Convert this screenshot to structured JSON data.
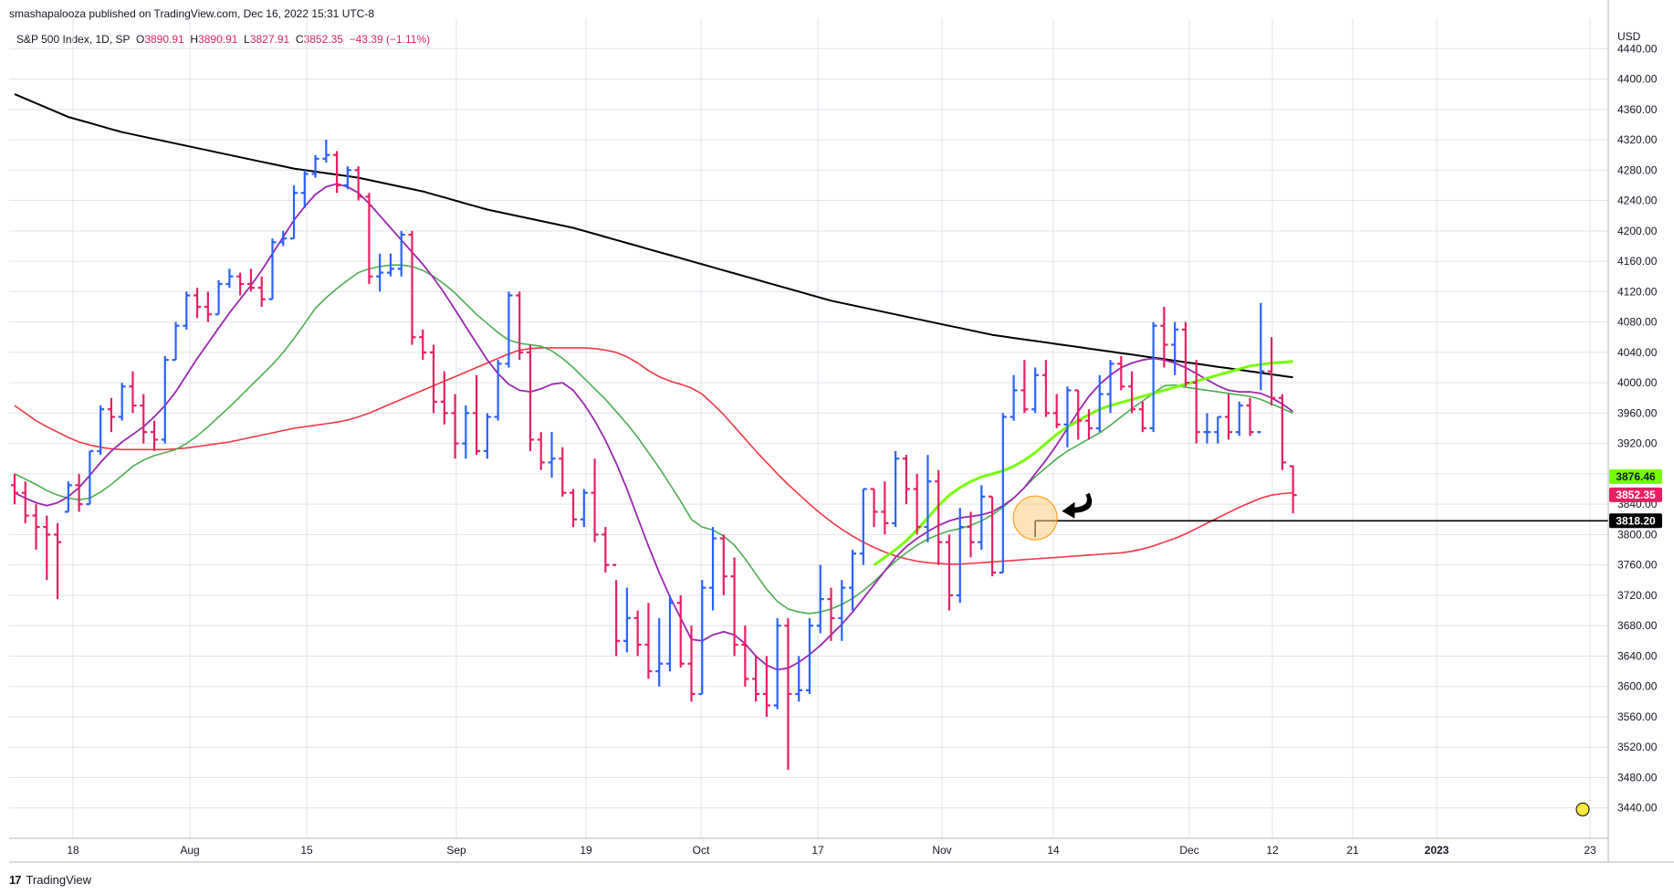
{
  "header": {
    "credit": "smashapalooza published on TradingView.com, Dec 16, 2022 15:31 UTC-8"
  },
  "legend": {
    "symbol": "S&P 500 Index, 1D, SP",
    "open_label": "O",
    "open": "3890.91",
    "high_label": "H",
    "high": "3890.91",
    "low_label": "L",
    "low": "3827.91",
    "close_label": "C",
    "close": "3852.35",
    "change": "−43.39 (−1.11%)"
  },
  "footer": {
    "brand": "TradingView",
    "brand_mark": "17"
  },
  "colors": {
    "up": "#2962ff",
    "down": "#e91e63",
    "ma200": "#000000",
    "ma50": "#f23645",
    "ma20": "#4caf50",
    "ma10": "#9c27b0",
    "highlight": "#76ff03",
    "grid": "#e0e3eb",
    "circle_fill": "#ffcc80",
    "marker": "#ffeb3b"
  },
  "chart_data": {
    "type": "ohlc",
    "currency": "USD",
    "y_ticks": [
      3440,
      3480,
      3520,
      3560,
      3600,
      3640,
      3680,
      3720,
      3760,
      3800,
      3840,
      3880,
      3920,
      3960,
      4000,
      4040,
      4080,
      4120,
      4160,
      4200,
      4240,
      4280,
      4320,
      4360,
      4400,
      4440
    ],
    "ylim": [
      3400,
      4480
    ],
    "x_ticks": [
      "18",
      "Aug",
      "15",
      "Sep",
      "19",
      "Oct",
      "17",
      "Nov",
      "14",
      "Dec",
      "12",
      "21",
      "2023",
      "23"
    ],
    "grid": true,
    "bars": [
      [
        3865,
        3880,
        3840,
        3855
      ],
      [
        3855,
        3870,
        3815,
        3825
      ],
      [
        3825,
        3840,
        3780,
        3810
      ],
      [
        3810,
        3825,
        3740,
        3800
      ],
      [
        3800,
        3815,
        3715,
        3790
      ],
      [
        3830,
        3870,
        3830,
        3865
      ],
      [
        3865,
        3880,
        3830,
        3840
      ],
      [
        3840,
        3910,
        3840,
        3910
      ],
      [
        3910,
        3970,
        3905,
        3965
      ],
      [
        3965,
        3980,
        3935,
        3955
      ],
      [
        3955,
        4000,
        3950,
        3995
      ],
      [
        3995,
        4015,
        3960,
        3970
      ],
      [
        3970,
        3985,
        3920,
        3935
      ],
      [
        3935,
        3950,
        3910,
        3925
      ],
      [
        3925,
        4035,
        3920,
        4030
      ],
      [
        4030,
        4080,
        4030,
        4075
      ],
      [
        4075,
        4120,
        4070,
        4115
      ],
      [
        4115,
        4125,
        4085,
        4100
      ],
      [
        4100,
        4120,
        4080,
        4090
      ],
      [
        4090,
        4135,
        4090,
        4130
      ],
      [
        4130,
        4150,
        4125,
        4140
      ],
      [
        4140,
        4145,
        4115,
        4130
      ],
      [
        4130,
        4150,
        4120,
        4125
      ],
      [
        4125,
        4140,
        4100,
        4110
      ],
      [
        4110,
        4190,
        4110,
        4185
      ],
      [
        4185,
        4200,
        4180,
        4190
      ],
      [
        4190,
        4260,
        4190,
        4250
      ],
      [
        4250,
        4280,
        4230,
        4275
      ],
      [
        4275,
        4300,
        4270,
        4295
      ],
      [
        4295,
        4320,
        4290,
        4300
      ],
      [
        4300,
        4305,
        4250,
        4260
      ],
      [
        4260,
        4285,
        4255,
        4280
      ],
      [
        4280,
        4285,
        4240,
        4245
      ],
      [
        4245,
        4250,
        4130,
        4140
      ],
      [
        4140,
        4170,
        4120,
        4145
      ],
      [
        4145,
        4170,
        4140,
        4150
      ],
      [
        4150,
        4200,
        4140,
        4195
      ],
      [
        4195,
        4200,
        4050,
        4060
      ],
      [
        4060,
        4070,
        4030,
        4040
      ],
      [
        4040,
        4050,
        3960,
        3975
      ],
      [
        3975,
        4015,
        3945,
        3960
      ],
      [
        3960,
        3985,
        3900,
        3920
      ],
      [
        3920,
        3970,
        3900,
        3960
      ],
      [
        3960,
        4010,
        3905,
        3910
      ],
      [
        3910,
        3960,
        3900,
        3955
      ],
      [
        3955,
        4030,
        3950,
        4025
      ],
      [
        4025,
        4120,
        4020,
        4115
      ],
      [
        4115,
        4120,
        4030,
        4040
      ],
      [
        4040,
        4050,
        3910,
        3925
      ],
      [
        3925,
        3935,
        3885,
        3895
      ],
      [
        3895,
        3935,
        3875,
        3900
      ],
      [
        3900,
        3915,
        3850,
        3855
      ],
      [
        3855,
        3860,
        3810,
        3820
      ],
      [
        3820,
        3860,
        3810,
        3855
      ],
      [
        3855,
        3900,
        3790,
        3800
      ],
      [
        3800,
        3810,
        3750,
        3760
      ],
      [
        3760,
        3740,
        3640,
        3660
      ],
      [
        3660,
        3730,
        3645,
        3690
      ],
      [
        3690,
        3700,
        3640,
        3655
      ],
      [
        3655,
        3710,
        3610,
        3620
      ],
      [
        3620,
        3690,
        3600,
        3630
      ],
      [
        3630,
        3720,
        3620,
        3710
      ],
      [
        3710,
        3720,
        3625,
        3630
      ],
      [
        3630,
        3680,
        3580,
        3590
      ],
      [
        3590,
        3740,
        3590,
        3730
      ],
      [
        3730,
        3810,
        3700,
        3795
      ],
      [
        3795,
        3800,
        3720,
        3745
      ],
      [
        3745,
        3770,
        3640,
        3655
      ],
      [
        3655,
        3680,
        3600,
        3610
      ],
      [
        3610,
        3640,
        3580,
        3590
      ],
      [
        3590,
        3640,
        3560,
        3575
      ],
      [
        3575,
        3690,
        3570,
        3680
      ],
      [
        3680,
        3690,
        3490,
        3590
      ],
      [
        3590,
        3640,
        3580,
        3595
      ],
      [
        3595,
        3690,
        3590,
        3680
      ],
      [
        3680,
        3760,
        3670,
        3715
      ],
      [
        3715,
        3730,
        3660,
        3690
      ],
      [
        3690,
        3740,
        3660,
        3730
      ],
      [
        3730,
        3780,
        3700,
        3775
      ],
      [
        3775,
        3860,
        3760,
        3860
      ],
      [
        3860,
        3860,
        3810,
        3830
      ],
      [
        3830,
        3870,
        3800,
        3815
      ],
      [
        3815,
        3910,
        3810,
        3900
      ],
      [
        3900,
        3905,
        3840,
        3860
      ],
      [
        3860,
        3880,
        3800,
        3810
      ],
      [
        3810,
        3905,
        3790,
        3870
      ],
      [
        3870,
        3885,
        3760,
        3790
      ],
      [
        3790,
        3800,
        3700,
        3720
      ],
      [
        3720,
        3835,
        3710,
        3810
      ],
      [
        3810,
        3830,
        3770,
        3790
      ],
      [
        3790,
        3865,
        3780,
        3850
      ],
      [
        3850,
        3850,
        3745,
        3750
      ],
      [
        3750,
        3960,
        3750,
        3955
      ],
      [
        3955,
        4010,
        3950,
        3990
      ],
      [
        3990,
        4030,
        3960,
        3965
      ],
      [
        3965,
        4020,
        3960,
        4010
      ],
      [
        4010,
        4030,
        3955,
        3960
      ],
      [
        3960,
        3985,
        3940,
        3945
      ],
      [
        3945,
        3995,
        3915,
        3990
      ],
      [
        3990,
        3990,
        3925,
        3950
      ],
      [
        3950,
        3965,
        3925,
        3940
      ],
      [
        3940,
        4010,
        3935,
        3985
      ],
      [
        3985,
        4030,
        3960,
        4025
      ],
      [
        4025,
        4035,
        3990,
        3995
      ],
      [
        3995,
        4015,
        3960,
        3965
      ],
      [
        3965,
        3975,
        3935,
        3940
      ],
      [
        3940,
        4080,
        3935,
        4075
      ],
      [
        4075,
        4100,
        4020,
        4050
      ],
      [
        4050,
        4080,
        4010,
        4070
      ],
      [
        4070,
        4080,
        3995,
        4000
      ],
      [
        4000,
        4030,
        3920,
        3935
      ],
      [
        3935,
        3960,
        3920,
        3935
      ],
      [
        3935,
        3955,
        3920,
        3955
      ],
      [
        3955,
        3985,
        3925,
        3935
      ],
      [
        3935,
        3975,
        3930,
        3970
      ],
      [
        3970,
        3980,
        3930,
        3935
      ],
      [
        3935,
        4105,
        3990,
        4015
      ],
      [
        4015,
        4060,
        3970,
        3980
      ],
      [
        3980,
        3985,
        3885,
        3895
      ],
      [
        3890,
        3891,
        3828,
        3852
      ]
    ],
    "ma200": [
      4380,
      4374,
      4368,
      4362,
      4356,
      4350,
      4346,
      4342,
      4338,
      4334,
      4330,
      4327,
      4324,
      4321,
      4318,
      4315,
      4312,
      4309,
      4306,
      4303,
      4300,
      4297,
      4294,
      4291,
      4288,
      4285,
      4282,
      4280,
      4278,
      4276,
      4274,
      4272,
      4270,
      4267,
      4264,
      4261,
      4258,
      4255,
      4252,
      4248,
      4244,
      4240,
      4236,
      4232,
      4228,
      4225,
      4222,
      4219,
      4216,
      4213,
      4210,
      4207,
      4204,
      4200,
      4196,
      4192,
      4188,
      4184,
      4180,
      4176,
      4172,
      4168,
      4164,
      4160,
      4156,
      4152,
      4148,
      4144,
      4140,
      4136,
      4132,
      4128,
      4124,
      4120,
      4116,
      4112,
      4108,
      4105,
      4102,
      4099,
      4096,
      4093,
      4090,
      4087,
      4084,
      4081,
      4078,
      4075,
      4072,
      4069,
      4066,
      4063,
      4061,
      4059,
      4057,
      4055,
      4053,
      4051,
      4049,
      4047,
      4045,
      4043,
      4041,
      4039,
      4037,
      4035,
      4033,
      4031,
      4029,
      4027,
      4025,
      4023,
      4021,
      4019,
      4017,
      4015,
      4013,
      4011,
      4009,
      4007
    ],
    "ma50": [
      3970,
      3960,
      3950,
      3942,
      3935,
      3928,
      3922,
      3918,
      3915,
      3913,
      3912,
      3912,
      3912,
      3912,
      3912,
      3913,
      3914,
      3916,
      3918,
      3920,
      3922,
      3925,
      3928,
      3931,
      3934,
      3937,
      3940,
      3942,
      3944,
      3946,
      3948,
      3951,
      3955,
      3960,
      3966,
      3972,
      3978,
      3984,
      3990,
      3996,
      4002,
      4008,
      4014,
      4020,
      4026,
      4032,
      4038,
      4043,
      4045,
      4046,
      4046,
      4046,
      4046,
      4046,
      4045,
      4043,
      4040,
      4034,
      4026,
      4016,
      4008,
      4002,
      3998,
      3993,
      3985,
      3972,
      3958,
      3942,
      3926,
      3910,
      3895,
      3880,
      3866,
      3853,
      3840,
      3828,
      3817,
      3807,
      3798,
      3790,
      3783,
      3777,
      3772,
      3768,
      3765,
      3763,
      3762,
      3761,
      3761,
      3762,
      3763,
      3764,
      3765,
      3766,
      3767,
      3768,
      3769,
      3770,
      3771,
      3772,
      3773,
      3774,
      3775,
      3776,
      3778,
      3781,
      3785,
      3790,
      3795,
      3801,
      3808,
      3815,
      3822,
      3829,
      3836,
      3842,
      3848,
      3852,
      3854,
      3855
    ],
    "ma20": [
      3880,
      3873,
      3866,
      3858,
      3852,
      3848,
      3846,
      3848,
      3856,
      3866,
      3878,
      3890,
      3898,
      3904,
      3908,
      3912,
      3920,
      3930,
      3942,
      3955,
      3968,
      3982,
      3996,
      4010,
      4024,
      4040,
      4058,
      4078,
      4098,
      4112,
      4124,
      4135,
      4145,
      4150,
      4153,
      4155,
      4155,
      4153,
      4148,
      4140,
      4130,
      4118,
      4104,
      4090,
      4078,
      4066,
      4056,
      4052,
      4050,
      4048,
      4042,
      4032,
      4020,
      4006,
      3992,
      3978,
      3962,
      3946,
      3928,
      3908,
      3888,
      3866,
      3844,
      3820,
      3810,
      3806,
      3798,
      3786,
      3768,
      3748,
      3728,
      3712,
      3702,
      3698,
      3696,
      3698,
      3702,
      3708,
      3716,
      3726,
      3738,
      3752,
      3765,
      3776,
      3786,
      3794,
      3800,
      3805,
      3808,
      3812,
      3818,
      3826,
      3836,
      3848,
      3862,
      3876,
      3888,
      3900,
      3910,
      3918,
      3926,
      3934,
      3944,
      3955,
      3966,
      3976,
      3986,
      3996,
      3997,
      3994,
      3992,
      3990,
      3988,
      3986,
      3984,
      3982,
      3978,
      3972,
      3966,
      3960
    ],
    "ma10": [
      3855,
      3848,
      3842,
      3838,
      3842,
      3850,
      3862,
      3878,
      3895,
      3910,
      3922,
      3932,
      3942,
      3955,
      3970,
      3988,
      4010,
      4032,
      4052,
      4072,
      4092,
      4110,
      4128,
      4148,
      4170,
      4192,
      4214,
      4232,
      4248,
      4258,
      4262,
      4258,
      4250,
      4236,
      4220,
      4204,
      4188,
      4172,
      4156,
      4138,
      4118,
      4096,
      4074,
      4052,
      4030,
      4012,
      3998,
      3990,
      3988,
      3992,
      3998,
      4000,
      3990,
      3972,
      3950,
      3924,
      3894,
      3860,
      3822,
      3785,
      3750,
      3718,
      3690,
      3662,
      3660,
      3668,
      3672,
      3668,
      3656,
      3640,
      3628,
      3622,
      3624,
      3632,
      3642,
      3654,
      3668,
      3682,
      3698,
      3716,
      3734,
      3752,
      3770,
      3784,
      3795,
      3804,
      3812,
      3818,
      3822,
      3824,
      3826,
      3830,
      3838,
      3848,
      3862,
      3880,
      3898,
      3918,
      3940,
      3962,
      3982,
      3998,
      4010,
      4020,
      4026,
      4030,
      4032,
      4030,
      4026,
      4020,
      4012,
      4004,
      3996,
      3990,
      3988,
      3988,
      3986,
      3980,
      3972,
      3962
    ],
    "highlight_ma": [
      3760,
      3770,
      3780,
      3792,
      3806,
      3822,
      3838,
      3852,
      3862,
      3870,
      3876,
      3880,
      3884,
      3890,
      3898,
      3908,
      3920,
      3932,
      3942,
      3950,
      3958,
      3965,
      3970,
      3974,
      3978,
      3982,
      3986,
      3990,
      3994,
      3998,
      4002,
      4006,
      4010,
      4014,
      4018,
      4022,
      4024,
      4026,
      4027,
      4028
    ],
    "hline": {
      "value": 3818.2,
      "label": "3818.20"
    },
    "price_tags": [
      {
        "label": "3876.46",
        "value": 3876.46,
        "color": "#76ff03",
        "text_color": "#131722"
      },
      {
        "label": "3852.35",
        "value": 3852.35,
        "color": "#e91e63",
        "text_color": "#ffffff"
      },
      {
        "label": "3818.20",
        "value": 3818.2,
        "color": "#000000",
        "text_color": "#ffffff"
      }
    ],
    "annotations": {
      "circle_bar_index": 95,
      "arrow_bar_index": 98
    }
  }
}
